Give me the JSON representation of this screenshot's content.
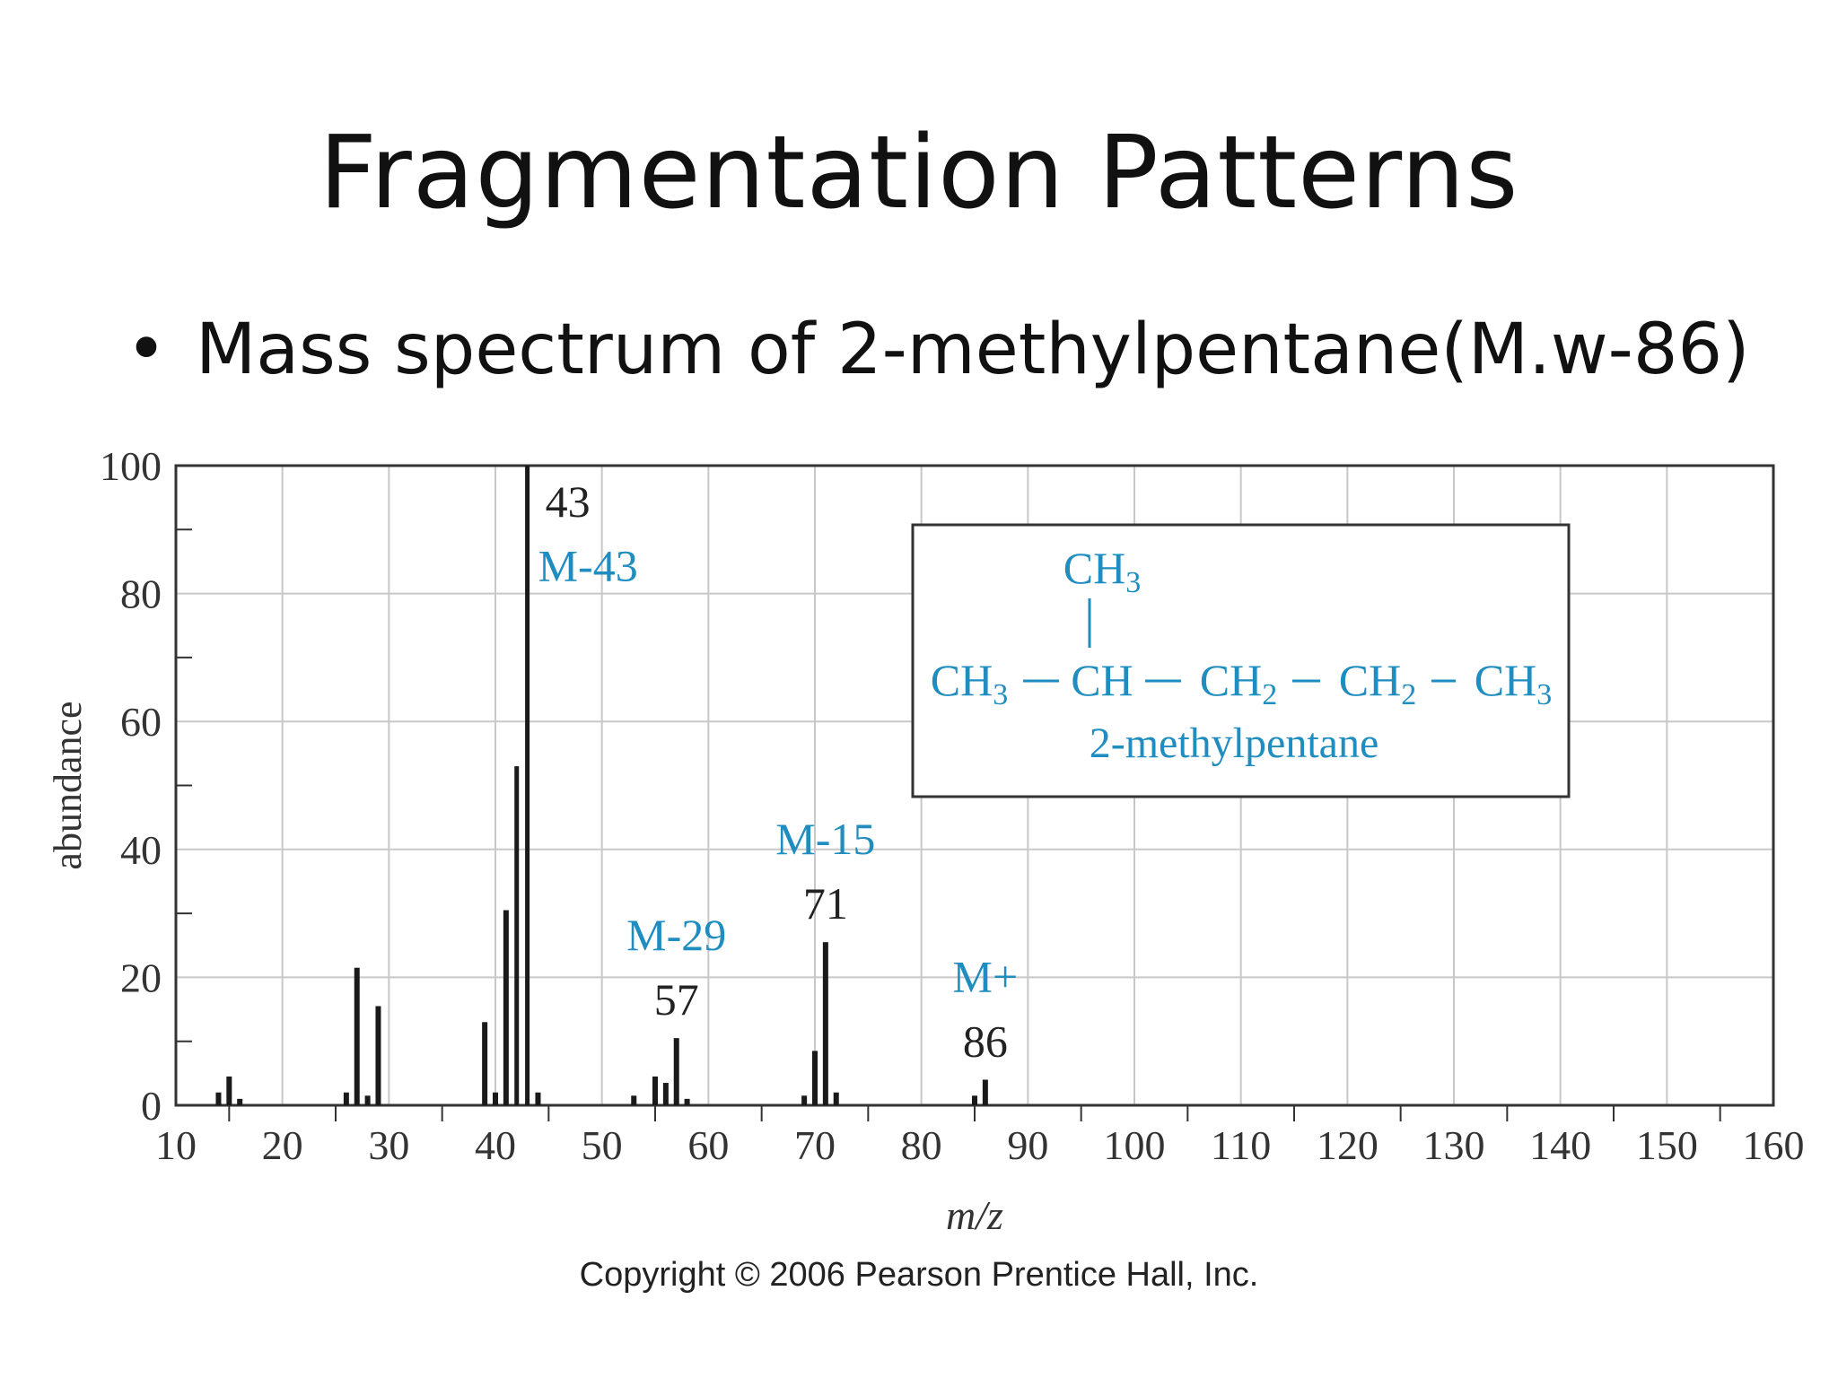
{
  "slide": {
    "title": "Fragmentation Patterns",
    "bullet_symbol": "•",
    "bullet_text": "Mass spectrum of 2-methylpentane(M.w-86)",
    "copyright": "Copyright © 2006 Pearson Prentice Hall, Inc."
  },
  "colors": {
    "accent": "#1f8dbf",
    "bars": "#1a1a1a",
    "grid": "#c8c8c8",
    "axis": "#333333"
  },
  "chart_data": {
    "type": "bar",
    "xlabel": "m/z",
    "ylabel": "abundance",
    "xlim": [
      10,
      160
    ],
    "ylim": [
      0,
      100
    ],
    "xticks": [
      10,
      20,
      30,
      40,
      50,
      60,
      70,
      80,
      90,
      100,
      110,
      120,
      130,
      140,
      150,
      160
    ],
    "yticks": [
      0,
      20,
      40,
      60,
      80,
      100
    ],
    "grid": true,
    "peaks": [
      {
        "x": 14,
        "y": 2
      },
      {
        "x": 15,
        "y": 4.5
      },
      {
        "x": 16,
        "y": 1
      },
      {
        "x": 26,
        "y": 2
      },
      {
        "x": 27,
        "y": 21.5
      },
      {
        "x": 28,
        "y": 1.5
      },
      {
        "x": 29,
        "y": 15.5
      },
      {
        "x": 39,
        "y": 13
      },
      {
        "x": 40,
        "y": 2
      },
      {
        "x": 41,
        "y": 30.5
      },
      {
        "x": 42,
        "y": 53
      },
      {
        "x": 43,
        "y": 100
      },
      {
        "x": 44,
        "y": 2
      },
      {
        "x": 53,
        "y": 1.5
      },
      {
        "x": 55,
        "y": 4.5
      },
      {
        "x": 56,
        "y": 3.5
      },
      {
        "x": 57,
        "y": 10.5
      },
      {
        "x": 58,
        "y": 1
      },
      {
        "x": 69,
        "y": 1.5
      },
      {
        "x": 70,
        "y": 8.5
      },
      {
        "x": 71,
        "y": 25.5
      },
      {
        "x": 72,
        "y": 2
      },
      {
        "x": 85,
        "y": 1.5
      },
      {
        "x": 86,
        "y": 4
      }
    ],
    "annotations": [
      {
        "mz_label": "43",
        "frag_label": "M-43",
        "x": 43,
        "y": 100,
        "position": "right"
      },
      {
        "mz_label": "57",
        "frag_label": "M-29",
        "x": 57,
        "y": 10.5,
        "position": "above"
      },
      {
        "mz_label": "71",
        "frag_label": "M-15",
        "x": 71,
        "y": 25.5,
        "position": "above"
      },
      {
        "mz_label": "86",
        "frag_label": "M+",
        "x": 86,
        "y": 4,
        "position": "above"
      }
    ],
    "structure": {
      "branch": "CH3",
      "chain": [
        "CH3",
        "CH",
        "CH2",
        "CH2",
        "CH3"
      ],
      "name": "2-methylpentane"
    }
  }
}
